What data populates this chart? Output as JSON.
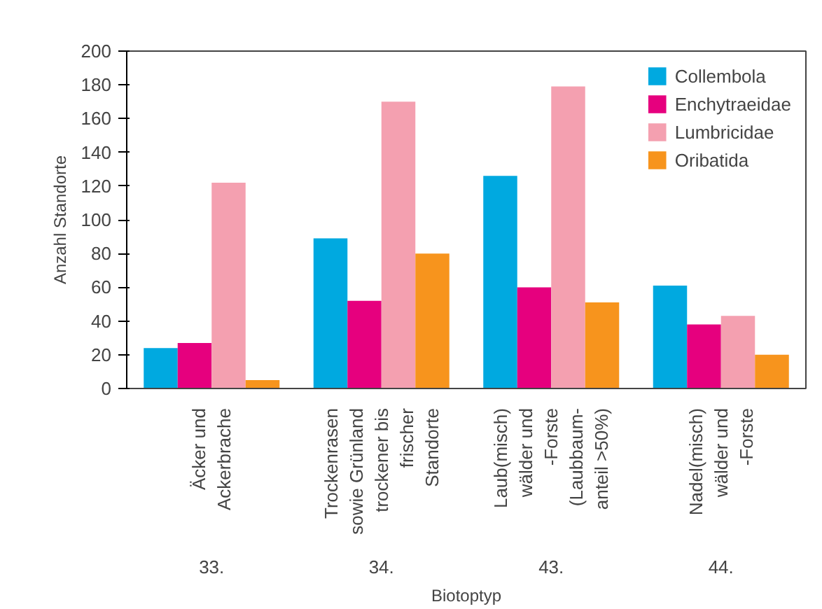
{
  "chart_data": {
    "type": "bar",
    "ylabel": "Anzahl Standorte",
    "xlabel": "Biotoptyp",
    "categories": [
      "Äcker und\nAckerbrache",
      "Trockenrasen\nsowie Grünland\ntrockener bis\nfrischer\nStandorte",
      "Laub(misch)\nwälder und\n-Forste\n(Laubbaum-\nanteil >50%)",
      "Nadel(misch)\nwälder und\n-Forste"
    ],
    "series": [
      {
        "name": "Collembola",
        "color": "#00a9e0",
        "values": [
          24,
          89,
          126,
          61
        ]
      },
      {
        "name": "Enchytraeidae",
        "color": "#e6007e",
        "values": [
          27,
          52,
          60,
          38
        ]
      },
      {
        "name": "Lumbricidae",
        "color": "#f4a0b0",
        "values": [
          122,
          170,
          179,
          43
        ]
      },
      {
        "name": "Oribatida",
        "color": "#f7941d",
        "values": [
          5,
          80,
          51,
          20
        ]
      }
    ],
    "ylim": [
      0,
      200
    ],
    "yticks": [
      0,
      20,
      40,
      60,
      80,
      100,
      120,
      140,
      160,
      180,
      200
    ],
    "legend": "top right",
    "annotations": [
      "33.",
      "34.",
      "43.",
      "44."
    ]
  }
}
